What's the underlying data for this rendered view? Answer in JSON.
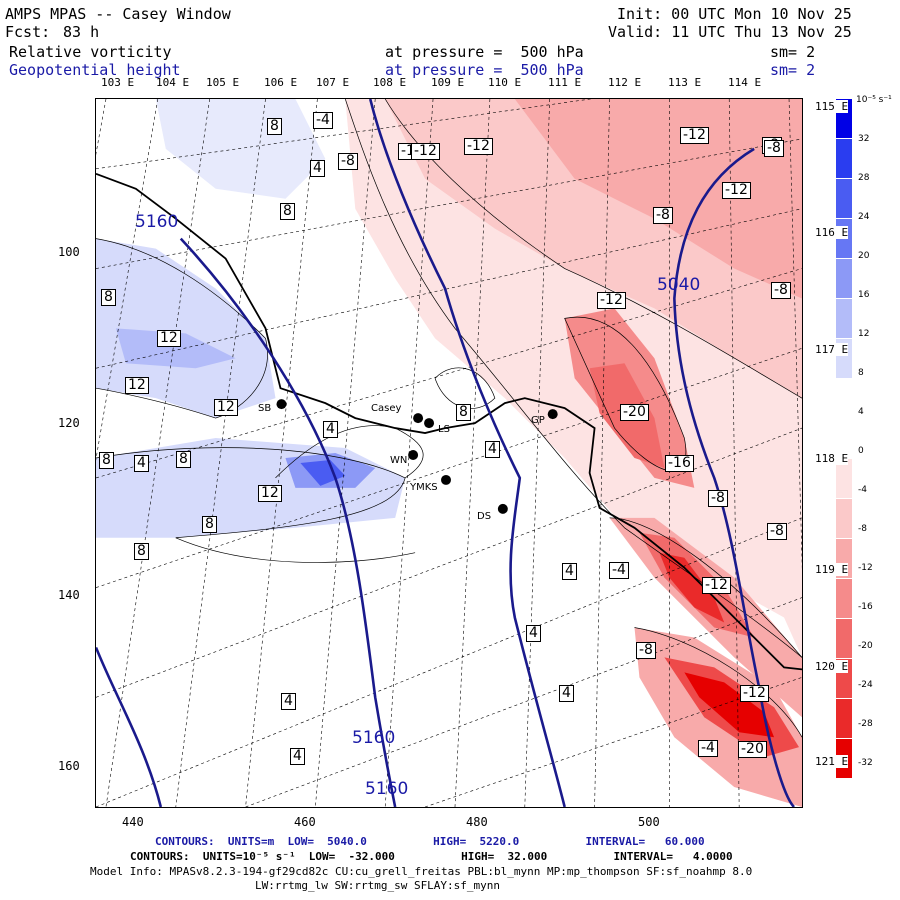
{
  "header": {
    "title": "AMPS MPAS -- Casey Window",
    "fcst_label": "Fcst:",
    "fcst_value": "83 h",
    "init": "Init: 00 UTC Mon 10 Nov 25",
    "valid": "Valid: 11 UTC Thu 13 Nov 25",
    "field1": "Relative vorticity",
    "field1_level": "at pressure =  500 hPa",
    "field1_sm": "sm= 2",
    "field2": "Geopotential height",
    "field2_level": "at pressure =  500 hPa",
    "field2_sm": "sm= 2"
  },
  "longitude_labels_top": [
    "103 E",
    "104 E",
    "105 E",
    "106 E",
    "107 E",
    "108 E",
    "109 E",
    "110 E",
    "111 E",
    "112 E",
    "113 E",
    "114 E"
  ],
  "longitude_labels_right": [
    "115 E",
    "116 E",
    "117 E",
    "118 E",
    "119 E",
    "120 E",
    "121 E"
  ],
  "y_ticks": [
    "100",
    "120",
    "140",
    "160"
  ],
  "x_ticks": [
    "440",
    "460",
    "480",
    "500"
  ],
  "stations": [
    "SB",
    "Casey",
    "LS",
    "WN",
    "YMKS",
    "DS",
    "GP"
  ],
  "height_labels": [
    "5160",
    "5040",
    "5160",
    "5160"
  ],
  "vorticity_labels": [
    "8",
    "-4",
    "4",
    "-8",
    "-12",
    "-12",
    "-12",
    "-8",
    "-12",
    "8",
    "-8",
    "8",
    "12",
    "12",
    "12",
    "-12",
    "8",
    "4",
    "-20",
    "8",
    "4",
    "8",
    "4",
    "-16",
    "12",
    "-8",
    "8",
    "-8",
    "8",
    "4",
    "-4",
    "-12",
    "4",
    "-8",
    "4",
    "-12",
    "4",
    "-4",
    "-20",
    "4",
    "-8",
    "-8",
    "-12"
  ],
  "colorbar": {
    "unit": "10⁻⁵ s⁻¹",
    "labels": [
      "32",
      "28",
      "24",
      "20",
      "16",
      "12",
      "8",
      "4",
      "0",
      "-4",
      "-8",
      "-12",
      "-16",
      "-20",
      "-24",
      "-28",
      "-32"
    ],
    "colors": [
      "#0000e6",
      "#2a3df0",
      "#4a5cf2",
      "#6677f4",
      "#8c99f6",
      "#b3bcf9",
      "#d6dbfb",
      "#ffffff",
      "#ffffff",
      "#fde3e3",
      "#fbc9c9",
      "#f8aaaa",
      "#f58b8b",
      "#f16a6a",
      "#ee4a4a",
      "#ea2a2a",
      "#e60000"
    ]
  },
  "footer": {
    "contours1": "CONTOURS:  UNITS=m  LOW=  5040.0          HIGH=  5220.0          INTERVAL=   60.000",
    "contours2": "CONTOURS:  UNITS=10⁻⁵ s⁻¹  LOW=  -32.000          HIGH=  32.000          INTERVAL=   4.0000",
    "model_info": "Model Info: MPASv8.2.3-194-gf29cd82c CU:cu_grell_freitas PBL:bl_mynn MP:mp_thompson SF:sf_noahmp 8.0",
    "model_info2": "LW:rrtmg_lw SW:rrtmg_sw SFLAY:sf_mynn"
  }
}
